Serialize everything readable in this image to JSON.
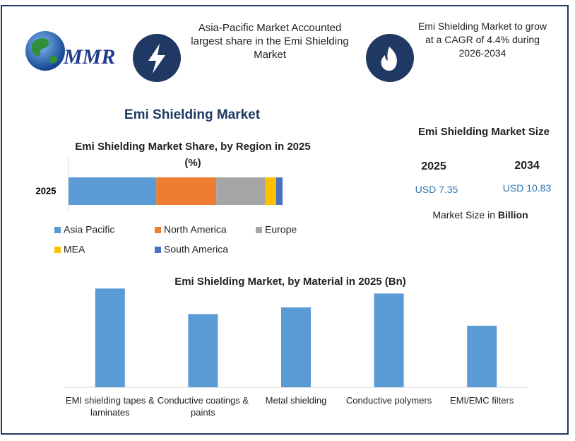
{
  "header": {
    "logo": "MMR",
    "highlight_1": "Asia-Pacific Market Accounted largest share in the Emi Shielding Market",
    "highlight_2": "Emi Shielding Market to grow at a CAGR of 4.4% during 2026-2034"
  },
  "title": "Emi Shielding Market",
  "market_size": {
    "title": "Emi Shielding Market Size",
    "years": [
      {
        "year": "2025",
        "value": "USD 7.35"
      },
      {
        "year": "2034",
        "value": "USD 10.83"
      }
    ],
    "note": "Market Size in",
    "unit": "Billion"
  },
  "chart_data": [
    {
      "type": "bar",
      "orientation": "horizontal",
      "stacked": true,
      "title": "Emi Shielding Market Share, by Region in 2025 (%)",
      "categories": [
        "2025"
      ],
      "xlim": [
        0,
        100
      ],
      "series": [
        {
          "name": "Asia Pacific",
          "color": "#5b9bd5",
          "values": [
            41
          ]
        },
        {
          "name": "North America",
          "color": "#ed7d31",
          "values": [
            28
          ]
        },
        {
          "name": "Europe",
          "color": "#a5a5a5",
          "values": [
            23
          ]
        },
        {
          "name": "MEA",
          "color": "#ffc000",
          "values": [
            5
          ]
        },
        {
          "name": "South America",
          "color": "#4472c4",
          "values": [
            3
          ]
        }
      ]
    },
    {
      "type": "bar",
      "orientation": "vertical",
      "title": "Emi Shielding Market, by Material in 2025 (Bn)",
      "categories": [
        "EMI shielding tapes & laminates",
        "Conductive coatings & paints",
        "Metal shielding",
        "Conductive polymers",
        "EMI/EMC filters"
      ],
      "values": [
        1.78,
        1.32,
        1.44,
        1.69,
        1.11
      ],
      "color": "#5b9bd5",
      "ylim": [
        0,
        2
      ]
    }
  ]
}
